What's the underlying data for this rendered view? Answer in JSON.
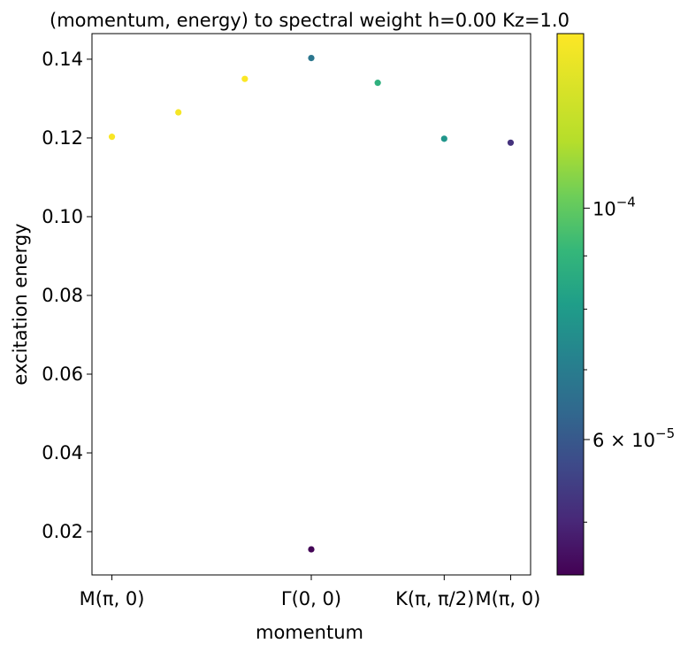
{
  "chart_data": {
    "type": "scatter",
    "title": "(momentum, energy) to spectral weight h=0.00 Kz=1.0",
    "xlabel": "momentum",
    "ylabel": "excitation energy",
    "x_ticks": [
      {
        "x": 0,
        "main": "M(π, 0)"
      },
      {
        "x": 3,
        "main": "Γ(0, 0)"
      },
      {
        "x": 5,
        "main": "K(π, π/2)",
        "frac": true
      },
      {
        "x": 6,
        "main": "M(π, 0)"
      }
    ],
    "ylim": [
      0.009,
      0.1465
    ],
    "xlim": [
      -0.3,
      6.3
    ],
    "y_ticks": [
      0.02,
      0.04,
      0.06,
      0.08,
      0.1,
      0.12,
      0.14
    ],
    "points": [
      {
        "x": 0,
        "y": 0.1203,
        "weight": 0.000145
      },
      {
        "x": 1,
        "y": 0.1265,
        "weight": 0.000143
      },
      {
        "x": 2,
        "y": 0.135,
        "weight": 0.000146
      },
      {
        "x": 3,
        "y": 0.1403,
        "weight": 6.8e-05
      },
      {
        "x": 3,
        "y": 0.0155,
        "weight": 4.5e-05
      },
      {
        "x": 4,
        "y": 0.134,
        "weight": 8.8e-05
      },
      {
        "x": 5,
        "y": 0.1198,
        "weight": 7.8e-05
      },
      {
        "x": 6,
        "y": 0.1188,
        "weight": 5.2e-05
      }
    ],
    "colorbar": {
      "colormap": "viridis",
      "scale": "log",
      "range": [
        4.45e-05,
        0.000147
      ],
      "major_ticks": [
        {
          "value": 0.0001,
          "mant": "",
          "exp": "−4"
        },
        {
          "value": 6e-05,
          "mant": "6 × ",
          "exp": "−5"
        }
      ],
      "minor_ticks": [
        5e-05,
        7e-05,
        8e-05,
        9e-05
      ]
    },
    "grid": false,
    "legend": "none"
  }
}
